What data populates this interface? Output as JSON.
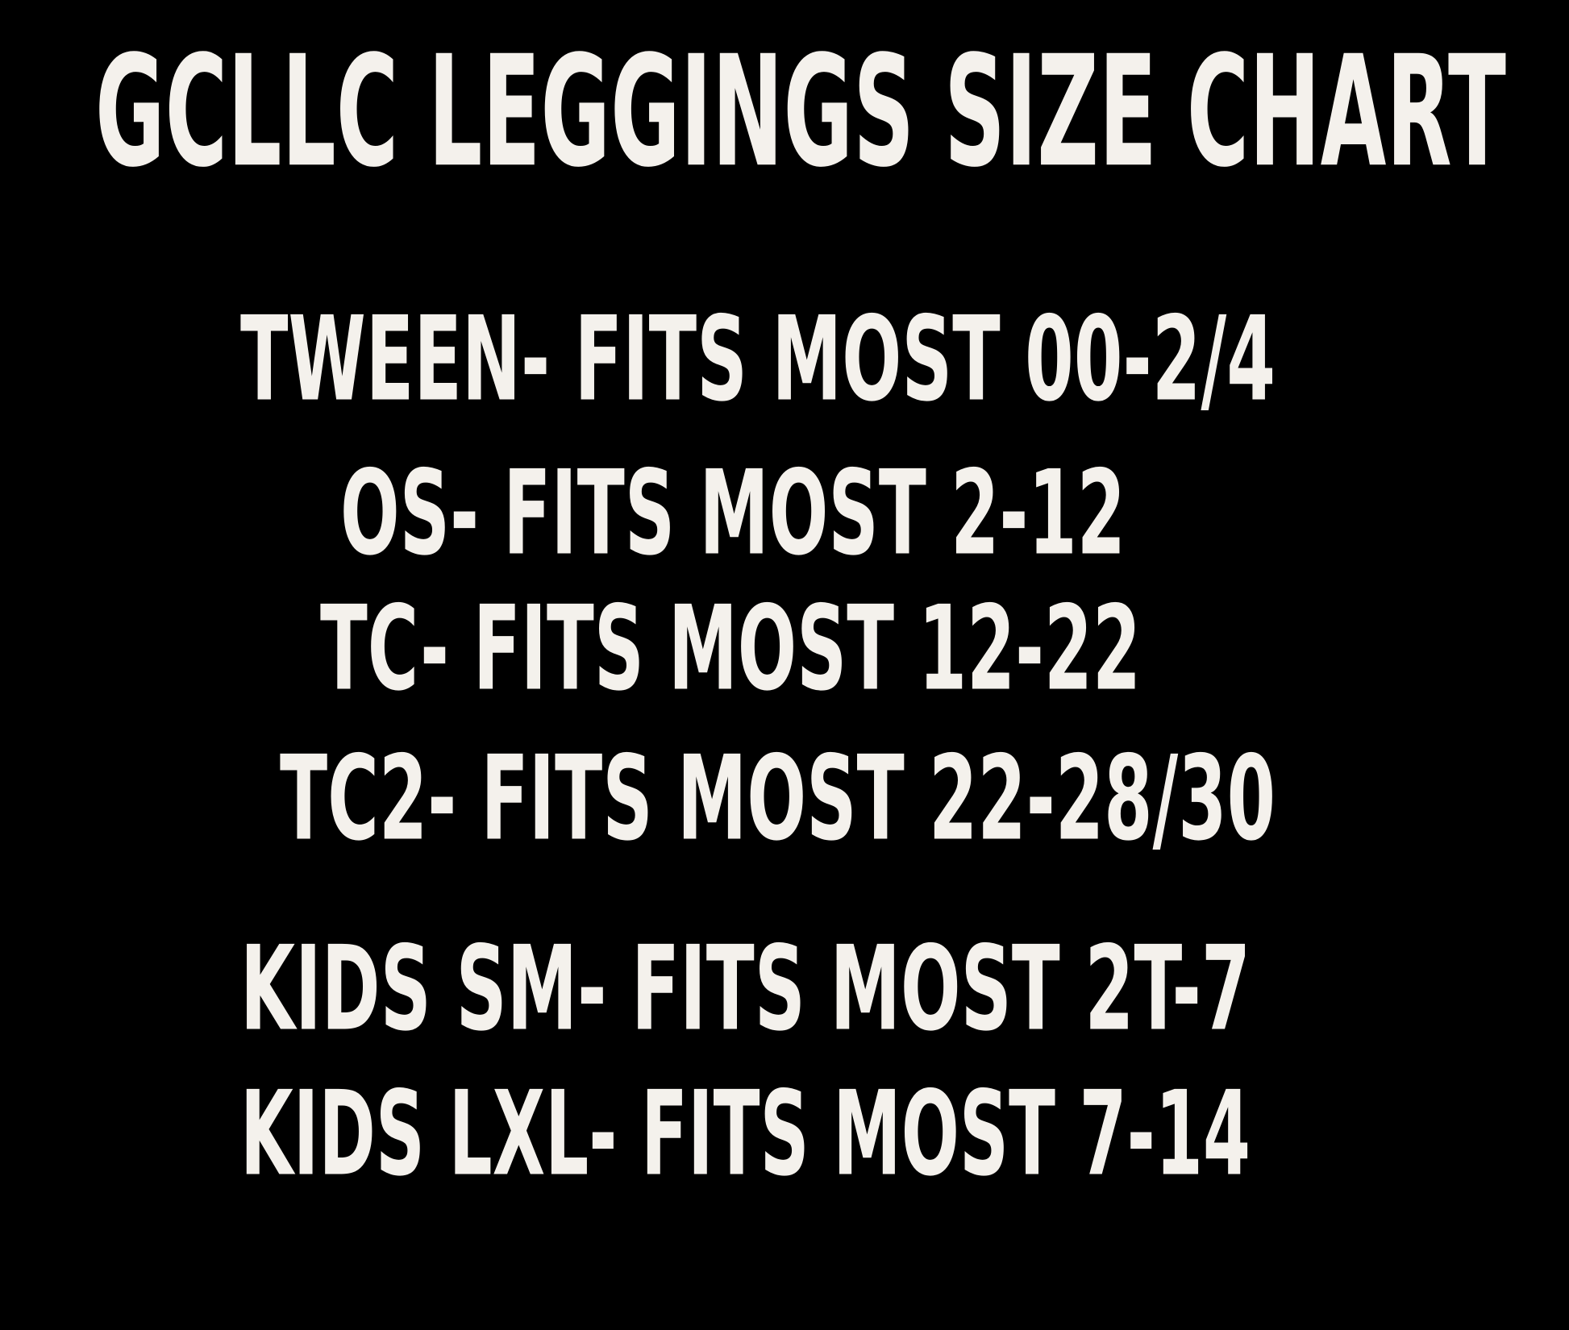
{
  "title": "GCLLC LEGGINGS SIZE CHART",
  "adult_sizes": [
    "TWEEN- FITS MOST 00-2/4",
    "OS- FITS MOST 2-12",
    "TC- FITS MOST 12-22",
    "TC2- FITS MOST 22-28/30"
  ],
  "kids_sizes": [
    "KIDS SM- FITS MOST 2T-7",
    "KIDS LXL- FITS MOST 7-14"
  ]
}
